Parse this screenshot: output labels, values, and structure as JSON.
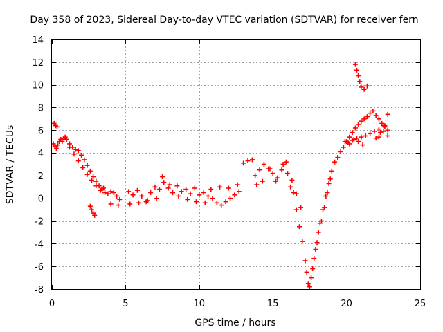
{
  "chart_data": {
    "type": "scatter",
    "title": "Day 358 of 2023, Sidereal Day-to-day VTEC variation (SDTVAR) for receiver fern",
    "xlabel": "GPS time / hours",
    "ylabel": "SDTVAR / TECUs",
    "xlim": [
      0,
      25
    ],
    "ylim": [
      -8,
      14
    ],
    "xticks": [
      0,
      5,
      10,
      15,
      20,
      25
    ],
    "yticks": [
      -8,
      -6,
      -4,
      -2,
      0,
      2,
      4,
      6,
      8,
      10,
      12,
      14
    ],
    "grid": true,
    "marker": "+",
    "color": "#ff0000",
    "series": [
      {
        "x": [
          0.1,
          0.2,
          0.3,
          0.4,
          0.5,
          0.6,
          0.7,
          0.8,
          0.9,
          1.0,
          1.2,
          1.4,
          1.6,
          1.8,
          2.0,
          2.2,
          2.4,
          2.6,
          2.8,
          3.0,
          3.2,
          3.4,
          3.6,
          1.2,
          1.5,
          1.8,
          2.1,
          2.4,
          2.7,
          3.0,
          3.3,
          2.6,
          2.7,
          2.8,
          2.9,
          0.15,
          0.25,
          0.35,
          3.8,
          4.0,
          4.2,
          4.4,
          4.6,
          4.0,
          4.5,
          3.5,
          5.2,
          5.5,
          5.8,
          6.1,
          6.4,
          6.7,
          7.0,
          7.3,
          7.6,
          7.9,
          8.2,
          8.5,
          8.8,
          9.1,
          9.4,
          9.7,
          10.0,
          10.3,
          5.3,
          5.9,
          6.5,
          7.1,
          7.5,
          8.0,
          8.6,
          9.2,
          9.8,
          10.4,
          10.6,
          10.9,
          11.2,
          11.5,
          11.8,
          12.1,
          12.4,
          12.7,
          10.8,
          11.4,
          12.0,
          12.6,
          13.0,
          13.3,
          13.6,
          13.8,
          14.1,
          14.4,
          14.7,
          15.0,
          15.3,
          15.6,
          15.9,
          13.9,
          14.3,
          14.8,
          15.2,
          15.7,
          16.0,
          16.2,
          16.4,
          16.6,
          16.8,
          17.0,
          16.3,
          16.6,
          16.9,
          17.2,
          17.3,
          17.4,
          17.5,
          17.6,
          17.7,
          17.8,
          17.9,
          18.0,
          18.1,
          18.2,
          18.4,
          18.6,
          18.8,
          19.0,
          19.2,
          19.4,
          19.6,
          19.8,
          18.3,
          18.5,
          18.7,
          18.9,
          20.0,
          20.2,
          20.4,
          20.6,
          20.8,
          21.0,
          21.2,
          21.4,
          21.6,
          21.8,
          22.0,
          22.2,
          22.4,
          22.6,
          22.8,
          20.1,
          20.4,
          20.7,
          21.0,
          21.3,
          21.6,
          21.9,
          22.2,
          22.5,
          22.8,
          19.9,
          20.2,
          20.5,
          20.8,
          21.1,
          22.0,
          22.3,
          22.6,
          22.8,
          22.5,
          22.2,
          20.6,
          20.7,
          20.8,
          20.9,
          21.0,
          21.2,
          21.4
        ],
        "y": [
          4.8,
          4.6,
          4.4,
          4.7,
          5.0,
          5.2,
          5.0,
          5.3,
          5.4,
          5.2,
          4.8,
          4.5,
          4.3,
          4.2,
          3.8,
          3.4,
          2.9,
          2.4,
          1.9,
          1.5,
          1.1,
          0.8,
          0.5,
          4.5,
          3.9,
          3.3,
          2.7,
          2.1,
          1.6,
          1.1,
          0.7,
          -0.7,
          -1.0,
          -1.3,
          -1.5,
          6.6,
          6.4,
          6.3,
          0.4,
          0.6,
          0.5,
          0.2,
          -0.1,
          -0.5,
          -0.6,
          0.9,
          0.6,
          0.3,
          0.7,
          0.2,
          -0.3,
          0.5,
          1.0,
          0.8,
          1.4,
          0.9,
          0.5,
          1.1,
          0.6,
          0.8,
          0.4,
          0.9,
          0.3,
          0.5,
          -0.5,
          -0.4,
          -0.2,
          0.0,
          1.9,
          1.2,
          0.2,
          -0.1,
          -0.3,
          -0.4,
          0.2,
          0.0,
          -0.4,
          -0.6,
          -0.3,
          0.0,
          0.3,
          0.6,
          0.8,
          1.0,
          0.9,
          1.2,
          3.1,
          3.3,
          3.4,
          2.0,
          2.5,
          3.0,
          2.6,
          2.2,
          1.8,
          2.5,
          3.2,
          1.2,
          1.5,
          2.6,
          1.5,
          3.0,
          2.2,
          1.0,
          0.5,
          -1.0,
          -2.5,
          -3.8,
          1.6,
          0.4,
          -0.8,
          -5.5,
          -6.5,
          -7.5,
          -7.8,
          -7.0,
          -6.2,
          -5.3,
          -4.5,
          -3.9,
          -3.0,
          -2.2,
          -1.0,
          0.2,
          1.3,
          2.4,
          3.2,
          3.6,
          4.1,
          4.5,
          -2.0,
          -0.8,
          0.5,
          1.7,
          5.0,
          5.4,
          5.8,
          6.2,
          6.5,
          6.8,
          7.0,
          7.2,
          7.5,
          7.7,
          7.3,
          7.0,
          6.6,
          6.3,
          6.0,
          4.9,
          5.1,
          5.3,
          5.4,
          5.5,
          5.7,
          5.9,
          6.1,
          6.4,
          7.4,
          5.0,
          4.8,
          5.2,
          5.0,
          4.7,
          5.3,
          5.8,
          6.4,
          5.5,
          5.9,
          5.4,
          11.8,
          11.3,
          10.8,
          10.3,
          9.8,
          9.6,
          9.9
        ]
      }
    ]
  }
}
